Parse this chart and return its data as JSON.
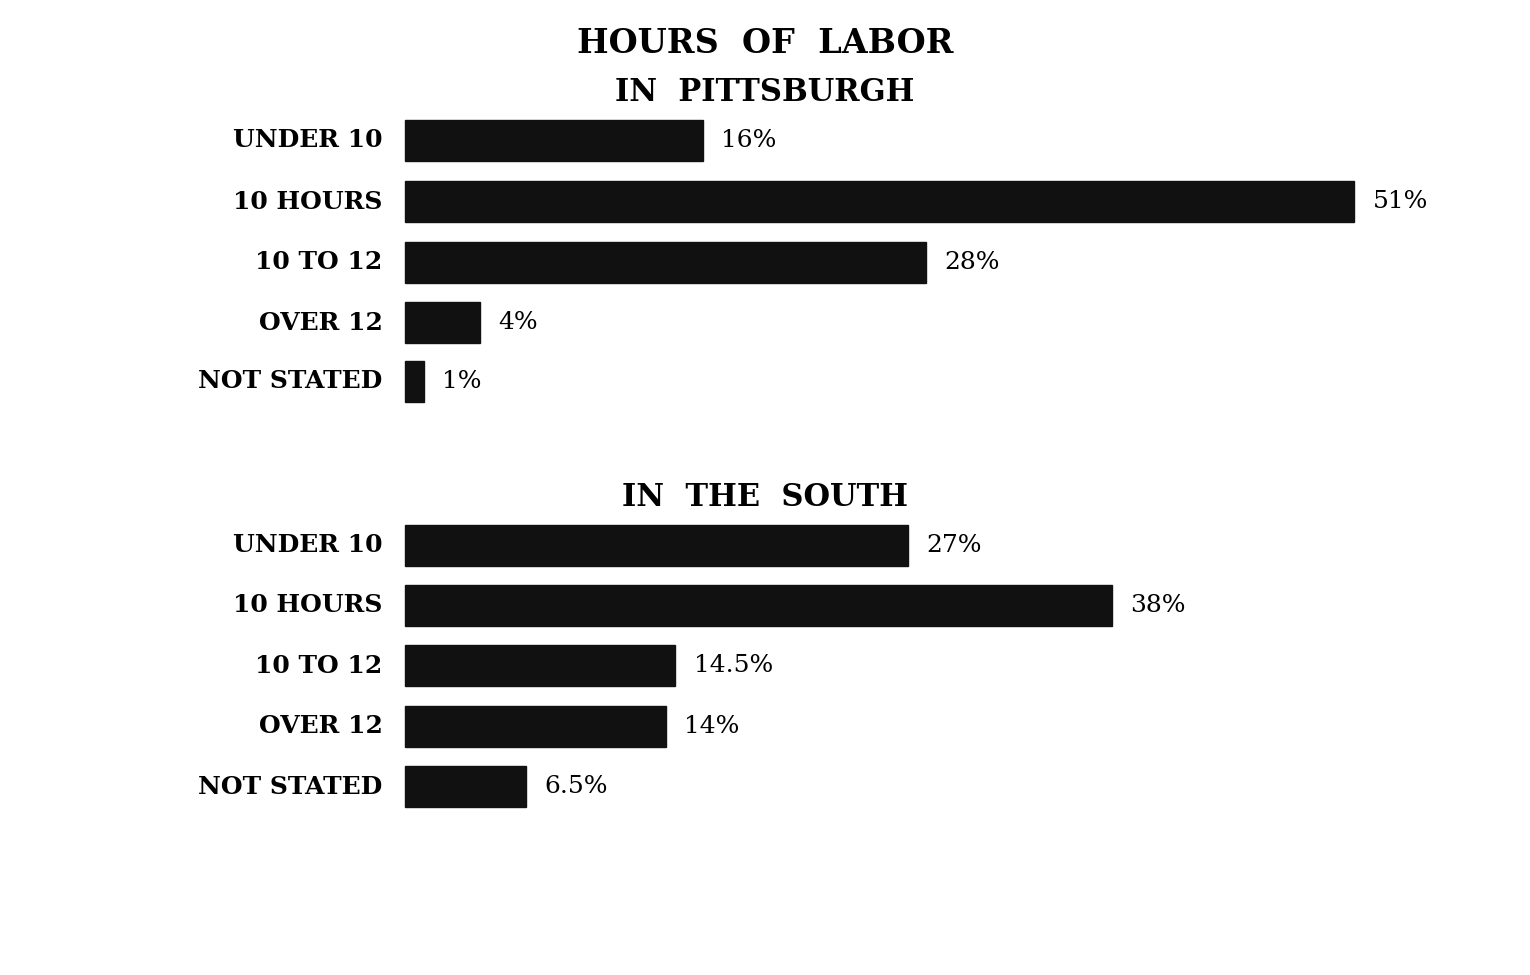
{
  "title": "HOURS  OF  LABOR",
  "subtitle1": "IN  PITTSBURGH",
  "subtitle2": "IN  THE  SOUTH",
  "pittsburgh": {
    "categories": [
      "UNDER 10",
      "10 HOURS",
      "10 TO 12",
      "OVER 12",
      "NOT STATED"
    ],
    "values": [
      16,
      51,
      28,
      4,
      1
    ],
    "labels": [
      "16%",
      "51%",
      "28%",
      "4%",
      "1%"
    ]
  },
  "south": {
    "categories": [
      "UNDER 10",
      "10 HOURS",
      "10 TO 12",
      "OVER 12",
      "NOT STATED"
    ],
    "values": [
      27,
      38,
      14.5,
      14,
      6.5
    ],
    "labels": [
      "27%",
      "38%",
      "14.5%",
      "14%",
      "6.5%"
    ]
  },
  "bar_color": "#111111",
  "background_color": "#ffffff",
  "max_value": 51,
  "label_fontsize": 18,
  "title_fontsize": 22,
  "category_fontsize": 18
}
